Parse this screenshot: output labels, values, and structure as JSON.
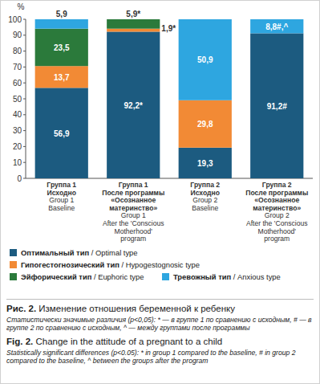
{
  "chart_data": {
    "type": "bar",
    "stacked": true,
    "data_labels": true,
    "grid": false,
    "y_label": "%",
    "categories": [
      "Группа 1\nИсходно\nGroup 1\nBaseline",
      "Группа 1\nПосле программы\n«Осознанное\nматеринство»\nGroup 1\nAfter the 'Conscious\nMotherhood'\nprogram",
      "Группа 2\nИсходно\nGroup 2\nBaseline",
      "Группа 2\nПосле программы\n«Осознанное\nматеринство»\nGroup 2\nAfter the 'Conscious\nMotherhood'\nprogram"
    ],
    "series": [
      {
        "name": "Оптимальный тип / Optimal type",
        "color": "#1c5b80",
        "values": [
          56.9,
          92.2,
          19.3,
          91.2
        ],
        "value_labels": [
          "56,9",
          "92,2*",
          "19,3",
          "91,2#"
        ]
      },
      {
        "name": "Гипогестогнозический тип / Hypogestognosic type",
        "color": "#f28a35",
        "values": [
          13.7,
          1.9,
          29.8,
          null
        ],
        "value_labels": [
          "13,7",
          "1,9*",
          "29,8",
          null
        ]
      },
      {
        "name": "Эйфорический тип / Euphoric type",
        "color": "#2b7a3b",
        "values": [
          23.5,
          5.9,
          null,
          null
        ],
        "value_labels": [
          "23,5",
          "5,9*",
          null,
          null
        ]
      },
      {
        "name": "Тревожный тип / Anxious type",
        "color": "#2ea6e0",
        "values": [
          5.9,
          null,
          50.9,
          8.8
        ],
        "value_labels": [
          "5,9",
          null,
          "50,9",
          "8,8#,^"
        ]
      }
    ],
    "ylim": [
      0,
      100
    ],
    "yticks": [
      0,
      10,
      20,
      30,
      40,
      50,
      60,
      70,
      80,
      90,
      100
    ],
    "title": "Рис. 2. Изменение отношения беременной к ребенку",
    "note": "Статистически значимые различия (p<0,05): * — в группе 1 по сравнению с исходным, # — в группе 2 по сравнению с исходным, ^ — между группами после программы",
    "title_en": "Fig. 2. Change in the attitude of a pregnant to a child",
    "note_en": "Statistically significant differences (p<0.05): * in group 1 compared to the baseline, # in group 2 compared to the baseline, ^ between the groups after the program"
  }
}
